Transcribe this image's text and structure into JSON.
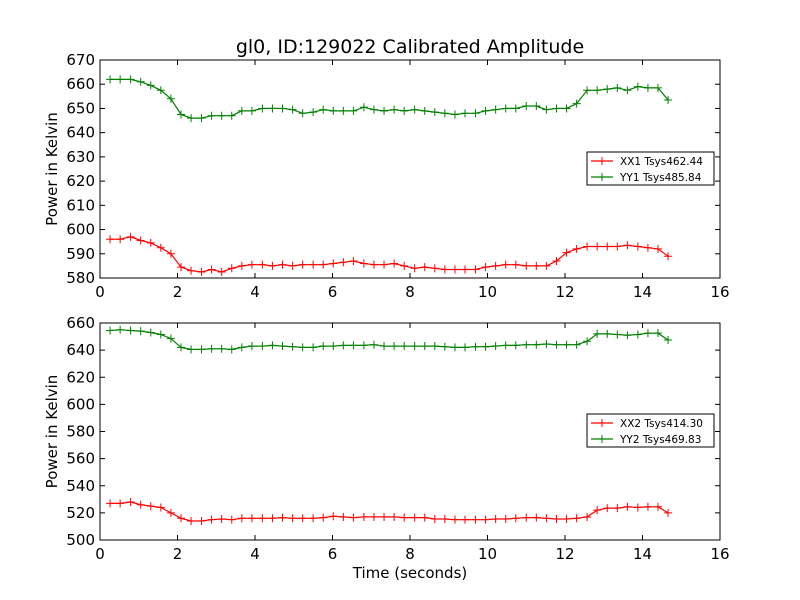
{
  "title": "gl0, ID:129022 Calibrated Amplitude",
  "chart_data": [
    {
      "type": "line",
      "title": "gl0, ID:129022 Calibrated Amplitude",
      "xlabel": "",
      "ylabel": "Power in Kelvin",
      "xlim": [
        0,
        16
      ],
      "ylim": [
        580,
        670
      ],
      "xticks": [
        0,
        2,
        4,
        6,
        8,
        10,
        12,
        14,
        16
      ],
      "yticks": [
        580,
        590,
        600,
        610,
        620,
        630,
        640,
        650,
        660,
        670
      ],
      "grid": false,
      "legend_position": "right",
      "x": [
        0.26,
        0.52,
        0.79,
        1.05,
        1.31,
        1.57,
        1.83,
        2.09,
        2.35,
        2.62,
        2.88,
        3.14,
        3.4,
        3.66,
        3.92,
        4.19,
        4.45,
        4.71,
        4.97,
        5.23,
        5.5,
        5.76,
        6.02,
        6.28,
        6.54,
        6.81,
        7.07,
        7.33,
        7.59,
        7.85,
        8.12,
        8.38,
        8.64,
        8.9,
        9.16,
        9.42,
        9.69,
        9.95,
        10.21,
        10.47,
        10.73,
        11.0,
        11.26,
        11.52,
        11.78,
        12.04,
        12.3,
        12.57,
        12.83,
        13.09,
        13.35,
        13.61,
        13.88,
        14.14,
        14.4,
        14.66
      ],
      "series": [
        {
          "name": "XX1 Tsys462.44",
          "color": "#ff0000",
          "values": [
            596,
            596,
            597,
            595.5,
            594.5,
            592.5,
            590,
            584.5,
            583,
            582.5,
            583.5,
            582.5,
            584,
            585,
            585.5,
            585.5,
            585,
            585.5,
            585,
            585.5,
            585.5,
            585.5,
            586,
            586.5,
            587,
            586,
            585.5,
            585.5,
            586,
            585,
            584,
            584.5,
            584,
            583.5,
            583.5,
            583.5,
            583.5,
            584.5,
            585,
            585.5,
            585.5,
            585,
            585,
            585,
            587,
            590.5,
            592,
            593,
            593,
            593,
            593,
            593.5,
            593,
            592.5,
            592,
            589
          ]
        },
        {
          "name": "YY1 Tsys485.84",
          "color": "#008000",
          "values": [
            662,
            662,
            662,
            661,
            659.5,
            657.5,
            654,
            647.5,
            646,
            646,
            647,
            647,
            647,
            649,
            649,
            650,
            650,
            650,
            649.5,
            648,
            648.5,
            649.5,
            649,
            649,
            649,
            650.5,
            649.5,
            649,
            649.5,
            649,
            649.5,
            649,
            648.5,
            648,
            647.5,
            648,
            648,
            649,
            649.5,
            650,
            650,
            651,
            651,
            649.5,
            650,
            650,
            652,
            657.5,
            657.5,
            658,
            658.5,
            657.5,
            659,
            658.5,
            658.5,
            653.5
          ]
        }
      ]
    },
    {
      "type": "line",
      "title": "",
      "xlabel": "Time (seconds)",
      "ylabel": "Power in Kelvin",
      "xlim": [
        0,
        16
      ],
      "ylim": [
        500,
        660
      ],
      "xticks": [
        0,
        2,
        4,
        6,
        8,
        10,
        12,
        14,
        16
      ],
      "yticks": [
        500,
        520,
        540,
        560,
        580,
        600,
        620,
        640,
        660
      ],
      "grid": false,
      "legend_position": "right",
      "x": [
        0.26,
        0.52,
        0.79,
        1.05,
        1.31,
        1.57,
        1.83,
        2.09,
        2.35,
        2.62,
        2.88,
        3.14,
        3.4,
        3.66,
        3.92,
        4.19,
        4.45,
        4.71,
        4.97,
        5.23,
        5.5,
        5.76,
        6.02,
        6.28,
        6.54,
        6.81,
        7.07,
        7.33,
        7.59,
        7.85,
        8.12,
        8.38,
        8.64,
        8.9,
        9.16,
        9.42,
        9.69,
        9.95,
        10.21,
        10.47,
        10.73,
        11.0,
        11.26,
        11.52,
        11.78,
        12.04,
        12.3,
        12.57,
        12.83,
        13.09,
        13.35,
        13.61,
        13.88,
        14.14,
        14.4,
        14.66
      ],
      "series": [
        {
          "name": "XX2 Tsys414.30",
          "color": "#ff0000",
          "values": [
            527,
            527,
            528,
            526,
            525,
            524,
            520,
            516,
            514,
            514,
            515,
            515.5,
            515,
            516,
            516,
            516,
            516,
            516.5,
            516,
            516,
            516,
            516.5,
            517.5,
            517,
            516.5,
            517,
            517,
            517,
            517,
            516.5,
            516.5,
            516.5,
            515.5,
            515.5,
            515,
            515,
            515,
            515,
            515.5,
            515.5,
            516,
            516.5,
            516.5,
            516,
            515.5,
            515.5,
            516,
            517,
            522,
            523.5,
            523.5,
            524.5,
            524,
            524.5,
            524.5,
            520
          ]
        },
        {
          "name": "YY2 Tsys469.83",
          "color": "#008000",
          "values": [
            654.5,
            655,
            654.5,
            654,
            653,
            651.5,
            648.5,
            642,
            640.5,
            640.5,
            641,
            641,
            640.5,
            642,
            643,
            643,
            643.5,
            643,
            642.5,
            642,
            642,
            643,
            643,
            643.5,
            643.5,
            643.5,
            644,
            643,
            643,
            643,
            643,
            643,
            643,
            642.5,
            642,
            642,
            642.5,
            642.5,
            643,
            643.5,
            643.5,
            644,
            644,
            644.5,
            644,
            644,
            644,
            646.5,
            652,
            652,
            651.5,
            651,
            651.5,
            652.5,
            652.5,
            647.5
          ]
        }
      ]
    }
  ]
}
